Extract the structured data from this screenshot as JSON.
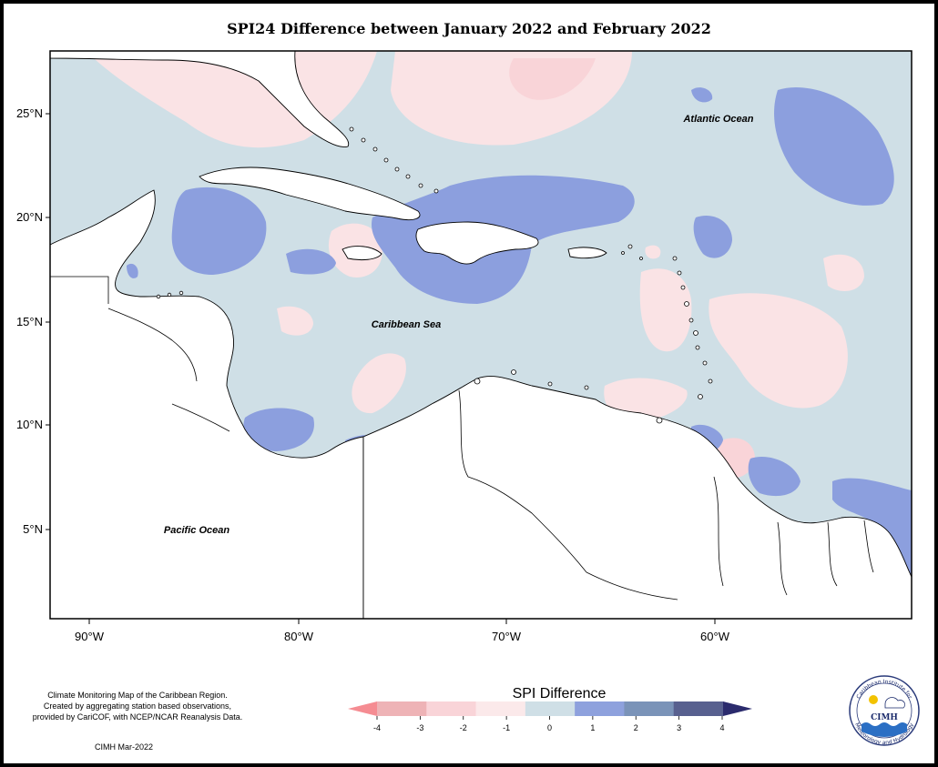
{
  "title": "SPI24 Difference between January 2022 and February 2022",
  "map": {
    "lat_labels": [
      "25°N",
      "20°N",
      "15°N",
      "10°N",
      "5°N"
    ],
    "lon_labels": [
      "90°W",
      "80°W",
      "70°W",
      "60°W"
    ],
    "ocean_labels": {
      "atlantic": "Atlantic Ocean",
      "caribbean": "Caribbean Sea",
      "pacific": "Pacific Ocean"
    },
    "colors": {
      "ocean_background": "#cfdfe6",
      "land": "#ffffff",
      "wet_1_2": "#8c9fde",
      "dry_0_1": "#fae3e5",
      "dry_1_2": "#f6c4c9",
      "dry_2_3": "#f4a3aa"
    }
  },
  "legend": {
    "title": "SPI Difference",
    "ticks": [
      "-4",
      "-3",
      "-2",
      "-1",
      "0",
      "1",
      "2",
      "3",
      "4"
    ],
    "colors": [
      "#f58c92",
      "#eeb3b6",
      "#f9d4d8",
      "#fbe9ea",
      "#cfdfe6",
      "#8ea1dd",
      "#7a93b8",
      "#58608f",
      "#2b2b6d"
    ]
  },
  "credit": {
    "lines": [
      "Climate Monitoring Map of the Caribbean Region.",
      "Created by aggregating station based observations,",
      "provided by CariCOF, with NCEP/NCAR Reanalysis Data."
    ],
    "date": "CIMH Mar-2022"
  },
  "logo": {
    "acronym": "CIMH",
    "ring_top": "Caribbean Institute for",
    "ring_bottom": "Meteorology and Hydrology",
    "icon": "cimh-logo-icon"
  }
}
